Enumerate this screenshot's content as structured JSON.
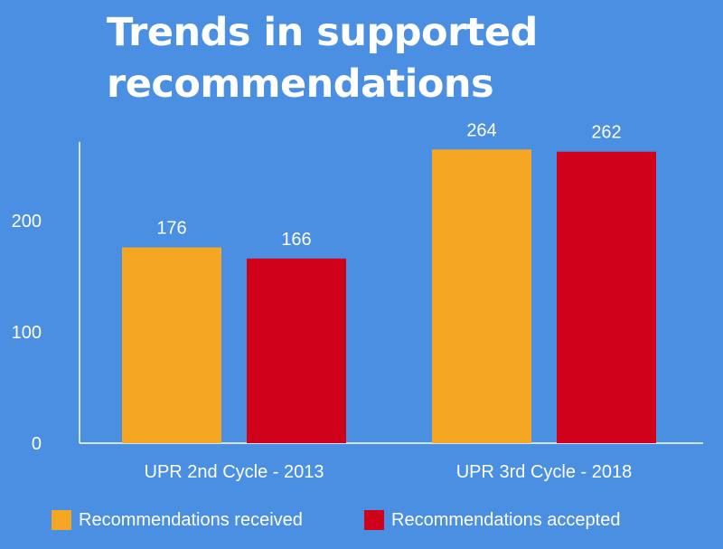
{
  "title": "Trends in supported recommendations",
  "colors": {
    "background": "#4a8fe2",
    "received": "#f5a623",
    "accepted": "#d0021b",
    "text": "#ffffff"
  },
  "chart_data": {
    "type": "bar",
    "title": "Trends in supported recommendations",
    "xlabel": "",
    "ylabel": "",
    "categories": [
      "UPR 2nd Cycle - 2013",
      "UPR 3rd Cycle - 2018"
    ],
    "series": [
      {
        "name": "Recommendations received",
        "values": [
          176,
          264
        ],
        "color": "#f5a623"
      },
      {
        "name": "Recommendations accepted",
        "values": [
          166,
          262
        ],
        "color": "#d0021b"
      }
    ],
    "ylim": [
      0,
      285
    ],
    "yticks": [
      0,
      100,
      200
    ],
    "data_labels": true,
    "grid": false,
    "legend": "bottom"
  }
}
